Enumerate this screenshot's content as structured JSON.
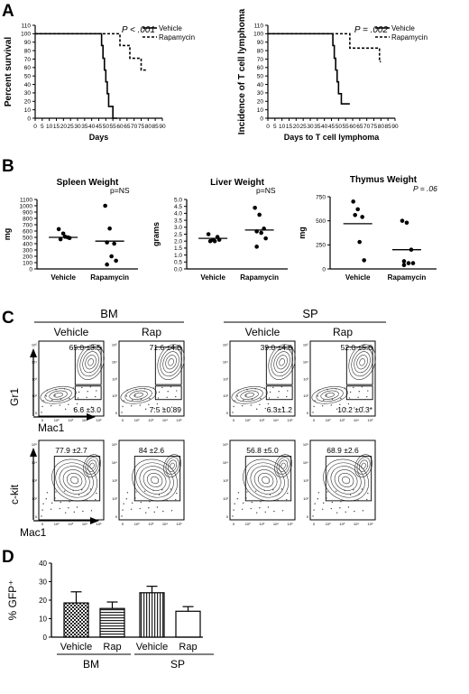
{
  "panels": {
    "A": "A",
    "B": "B",
    "C": "C",
    "D": "D"
  },
  "chart_data": [
    {
      "panel": "A",
      "type": "line",
      "step": true,
      "ylabel": "Percent survival",
      "xlabel": "Days",
      "xlim": [
        0,
        90
      ],
      "ylim": [
        0,
        110
      ],
      "xticks": [
        "0",
        "5",
        "10",
        "15",
        "20",
        "25",
        "30",
        "35",
        "40",
        "45",
        "50",
        "55",
        "60",
        "65",
        "70",
        "75",
        "80",
        "85",
        "90"
      ],
      "yticks": [
        "0",
        "10",
        "20",
        "30",
        "40",
        "50",
        "60",
        "70",
        "80",
        "90",
        "100",
        "110"
      ],
      "annotation": "P < .001",
      "legend_position": "top-right",
      "series": [
        {
          "name": "Vehicle",
          "style": "solid",
          "x": [
            0,
            45,
            47,
            48,
            49,
            50,
            51,
            52,
            55,
            58
          ],
          "y": [
            100,
            100,
            86,
            71,
            57,
            43,
            29,
            14,
            0,
            0
          ]
        },
        {
          "name": "Rapamycin",
          "style": "dashed",
          "x": [
            0,
            58,
            60,
            62,
            67,
            72,
            75,
            79
          ],
          "y": [
            100,
            100,
            86,
            86,
            71,
            71,
            57,
            57
          ]
        }
      ]
    },
    {
      "panel": "A",
      "type": "line",
      "step": true,
      "ylabel": "Incidence of T cell lymphoma",
      "xlabel": "Days to T cell lymphoma",
      "xlim": [
        0,
        90
      ],
      "ylim": [
        0,
        110
      ],
      "xticks": [
        "0",
        "5",
        "10",
        "15",
        "20",
        "25",
        "30",
        "35",
        "40",
        "45",
        "50",
        "55",
        "60",
        "65",
        "70",
        "75",
        "80",
        "85",
        "90"
      ],
      "yticks": [
        "0",
        "10",
        "20",
        "30",
        "40",
        "50",
        "60",
        "70",
        "80",
        "90",
        "100",
        "110"
      ],
      "annotation": "P = .002",
      "legend_position": "top-right",
      "series": [
        {
          "name": "Vehicle",
          "style": "solid",
          "x": [
            0,
            44,
            46,
            47,
            48,
            49,
            50,
            52,
            58
          ],
          "y": [
            100,
            100,
            86,
            71,
            57,
            43,
            29,
            17,
            17
          ]
        },
        {
          "name": "Rapamycin",
          "style": "dashed",
          "x": [
            0,
            55,
            58,
            65,
            75,
            79,
            80
          ],
          "y": [
            100,
            100,
            83,
            83,
            83,
            67,
            67
          ]
        }
      ]
    },
    {
      "panel": "B",
      "type": "scatter",
      "title": "Spleen Weight",
      "ylabel": "mg",
      "ylim": [
        0,
        1100
      ],
      "yticks": [
        "0",
        "100",
        "200",
        "300",
        "400",
        "500",
        "600",
        "700",
        "800",
        "900",
        "1000",
        "1100"
      ],
      "categories": [
        "Vehicle",
        "Rapamycin"
      ],
      "annotation": "p=NS",
      "points": [
        [
          630,
          560,
          500,
          470,
          510,
          490
        ],
        [
          1000,
          640,
          400,
          420,
          200,
          130,
          70
        ]
      ],
      "means": [
        500,
        440
      ]
    },
    {
      "panel": "B",
      "type": "scatter",
      "title": "Liver Weight",
      "ylabel": "grams",
      "ylim": [
        0,
        5.0
      ],
      "yticks": [
        "0.0",
        "0.5",
        "1.0",
        "1.5",
        "2.0",
        "2.5",
        "3.0",
        "3.5",
        "4.0",
        "4.5",
        "5.0"
      ],
      "categories": [
        "Vehicle",
        "Rapamycin"
      ],
      "annotation": "p=NS",
      "points": [
        [
          2.5,
          2.1,
          2.3,
          2.0,
          2.0,
          2.1
        ],
        [
          4.4,
          3.9,
          2.9,
          2.7,
          2.6,
          2.2,
          1.6
        ]
      ],
      "means": [
        2.2,
        2.8
      ]
    },
    {
      "panel": "B",
      "type": "scatter",
      "title": "Thymus Weight",
      "ylabel": "mg",
      "ylim": [
        0,
        750
      ],
      "yticks": [
        "0",
        "250",
        "500",
        "750"
      ],
      "categories": [
        "Vehicle",
        "Rapamycin"
      ],
      "annotation": "P = .06",
      "points": [
        [
          700,
          620,
          540,
          560,
          280,
          90
        ],
        [
          500,
          480,
          200,
          80,
          60,
          60,
          40
        ]
      ],
      "means": [
        470,
        200
      ]
    },
    {
      "panel": "D",
      "type": "bar",
      "ylabel": "% GFP⁺",
      "ylim": [
        0,
        40
      ],
      "yticks": [
        "0",
        "10",
        "20",
        "30",
        "40"
      ],
      "categories": [
        "Vehicle",
        "Rap",
        "Vehicle",
        "Rap"
      ],
      "groups": [
        "BM",
        "SP"
      ],
      "values": [
        18.5,
        15.5,
        24.0,
        14.0
      ],
      "errors": [
        6.0,
        3.5,
        3.5,
        2.5
      ],
      "patterns": [
        "checker",
        "hlines",
        "vlines",
        "plain"
      ]
    }
  ],
  "flow": {
    "groups": [
      "BM",
      "SP"
    ],
    "conditions": [
      "Vehicle",
      "Rap",
      "Vehicle",
      "Rap"
    ],
    "row1": {
      "y_axis": "Gr1",
      "x_axis": "Mac1",
      "upper_values": [
        "65.0 ±3.5",
        "71.6 ±4.0",
        "39.0 ±4.8",
        "52.0 ±5.0"
      ],
      "lower_values": [
        "6.6 ±3.0",
        "7.5 ±0.89",
        "6.3±1.2",
        "10.2 ±0.3*"
      ]
    },
    "row2": {
      "y_axis": "c-kit",
      "x_axis": "Mac1",
      "values": [
        "77.9 ±2.7",
        "84 ±2.6",
        "56.8 ±5.0",
        "68.9 ±2.6"
      ]
    }
  }
}
